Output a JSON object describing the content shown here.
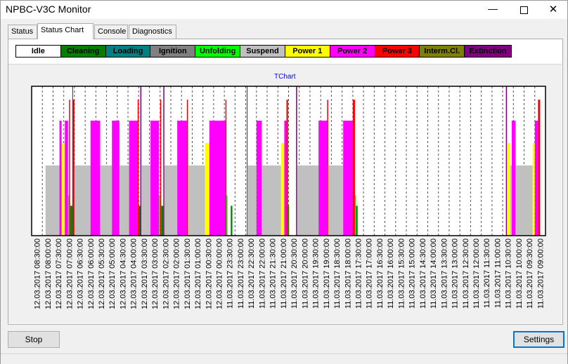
{
  "window": {
    "title": "NPBC-V3C Monitor",
    "minimize": "—",
    "close": "✕"
  },
  "tabs": [
    {
      "label": "Status",
      "active": false
    },
    {
      "label": "Status Chart",
      "active": true
    },
    {
      "label": "Console",
      "active": false
    },
    {
      "label": "Diagnostics",
      "active": false
    }
  ],
  "legend": [
    {
      "label": "Idle",
      "bg": "#ffffff",
      "fg": "#000000"
    },
    {
      "label": "Cleaning",
      "bg": "#008000",
      "fg": "#000000"
    },
    {
      "label": "Loading",
      "bg": "#008080",
      "fg": "#000000"
    },
    {
      "label": "Ignition",
      "bg": "#808080",
      "fg": "#000000"
    },
    {
      "label": "Unfolding",
      "bg": "#00ff00",
      "fg": "#000000"
    },
    {
      "label": "Suspend",
      "bg": "#c0c0c0",
      "fg": "#000000"
    },
    {
      "label": "Power 1",
      "bg": "#ffff00",
      "fg": "#000000"
    },
    {
      "label": "Power 2",
      "bg": "#ff00ff",
      "fg": "#000000"
    },
    {
      "label": "Power 3",
      "bg": "#ff0000",
      "fg": "#000000"
    },
    {
      "label": "Interm.Cl.",
      "bg": "#808000",
      "fg": "#000000"
    },
    {
      "label": "Extinction",
      "bg": "#800080",
      "fg": "#000000"
    }
  ],
  "buttons": {
    "stop": "Stop",
    "settings": "Settings"
  },
  "chart_data": {
    "type": "bar",
    "title": "TChart",
    "ylim": [
      0,
      1
    ],
    "grid": true,
    "colors": {
      "Cleaning": "#008000",
      "Suspend": "#c0c0c0",
      "Power 1": "#ffff00",
      "Power 2": "#ff00ff",
      "Power 3": "#ff0000",
      "Unfolding": "#00ff00",
      "Extinction": "#800080"
    },
    "levels": {
      "Suspend": 0.47,
      "Power 1": 0.62,
      "Power 2": 0.77,
      "Power 3": 0.91,
      "Unfolding": 0.27,
      "Cleaning": 0.2,
      "Extinction": 1.0
    },
    "x": [
      "12.03.2017 08:30:00",
      "12.03.2017 08:00:00",
      "12.03.2017 07:30:00",
      "12.03.2017 07:00:00",
      "12.03.2017 06:30:00",
      "12.03.2017 06:00:00",
      "12.03.2017 05:30:00",
      "12.03.2017 05:00:00",
      "12.03.2017 04:30:00",
      "12.03.2017 04:00:00",
      "12.03.2017 03:30:00",
      "12.03.2017 03:00:00",
      "12.03.2017 02:30:00",
      "12.03.2017 02:00:00",
      "12.03.2017 01:30:00",
      "12.03.2017 01:00:00",
      "12.03.2017 00:30:00",
      "12.03.2017 00:00:00",
      "11.03.2017 23:30:00",
      "11.03.2017 23:00:00",
      "11.03.2017 22:30:00",
      "11.03.2017 22:00:00",
      "11.03.2017 21:30:00",
      "11.03.2017 21:00:00",
      "11.03.2017 20:30:00",
      "11.03.2017 20:00:00",
      "11.03.2017 19:30:00",
      "11.03.2017 19:00:00",
      "11.03.2017 18:30:00",
      "11.03.2017 18:00:00",
      "11.03.2017 17:30:00",
      "11.03.2017 17:00:00",
      "11.03.2017 16:30:00",
      "11.03.2017 16:00:00",
      "11.03.2017 15:30:00",
      "11.03.2017 15:00:00",
      "11.03.2017 14:30:00",
      "11.03.2017 14:00:00",
      "11.03.2017 13:30:00",
      "11.03.2017 13:00:00",
      "11.03.2017 12:30:00",
      "11.03.2017 12:00:00",
      "11.03.2017 11:30:00",
      "11.03.2017 11:00:00",
      "11.03.2017 10:30:00",
      "11.03.2017 10:00:00",
      "11.03.2017 09:30:00",
      "11.03.2017 09:00:00"
    ],
    "segments": [
      {
        "state": "Suspend",
        "start": 1.3,
        "end": 3.1
      },
      {
        "state": "Power 2",
        "start": 2.6,
        "end": 2.8
      },
      {
        "state": "Power 1",
        "start": 2.8,
        "end": 3.1
      },
      {
        "state": "Power 2",
        "start": 3.1,
        "end": 3.4
      },
      {
        "state": "Unfolding",
        "start": 3.4,
        "end": 3.5
      },
      {
        "state": "Power 3",
        "start": 3.5,
        "end": 3.6
      },
      {
        "state": "Cleaning",
        "start": 3.6,
        "end": 3.8
      },
      {
        "state": "Extinction",
        "start": 3.8,
        "end": 3.85
      },
      {
        "state": "Power 3",
        "start": 3.85,
        "end": 4.0
      },
      {
        "state": "Suspend",
        "start": 4.0,
        "end": 5.5
      },
      {
        "state": "Power 2",
        "start": 5.5,
        "end": 6.4
      },
      {
        "state": "Suspend",
        "start": 6.4,
        "end": 7.5
      },
      {
        "state": "Power 2",
        "start": 7.5,
        "end": 8.2
      },
      {
        "state": "Suspend",
        "start": 8.2,
        "end": 9.1
      },
      {
        "state": "Power 2",
        "start": 9.1,
        "end": 9.9
      },
      {
        "state": "Power 3",
        "start": 9.9,
        "end": 10.0
      },
      {
        "state": "Cleaning",
        "start": 10.0,
        "end": 10.15
      },
      {
        "state": "Extinction",
        "start": 10.15,
        "end": 10.25
      },
      {
        "state": "Suspend",
        "start": 10.25,
        "end": 11.1
      },
      {
        "state": "Power 2",
        "start": 11.1,
        "end": 11.9
      },
      {
        "state": "Unfolding",
        "start": 11.9,
        "end": 12.0
      },
      {
        "state": "Power 3",
        "start": 12.0,
        "end": 12.1
      },
      {
        "state": "Cleaning",
        "start": 12.1,
        "end": 12.3
      },
      {
        "state": "Extinction",
        "start": 12.3,
        "end": 12.4
      },
      {
        "state": "Suspend",
        "start": 12.4,
        "end": 13.6
      },
      {
        "state": "Power 2",
        "start": 13.6,
        "end": 14.5
      },
      {
        "state": "Power 3",
        "start": 14.5,
        "end": 14.6
      },
      {
        "state": "Suspend",
        "start": 14.6,
        "end": 16.2
      },
      {
        "state": "Power 1",
        "start": 16.2,
        "end": 16.6
      },
      {
        "state": "Power 2",
        "start": 16.6,
        "end": 18.1
      },
      {
        "state": "Power 3",
        "start": 18.1,
        "end": 18.2
      },
      {
        "state": "Unfolding",
        "start": 18.2,
        "end": 18.3
      },
      {
        "state": "Cleaning",
        "start": 18.6,
        "end": 18.75
      },
      {
        "state": "Extinction",
        "start": 20.1,
        "end": 20.15
      },
      {
        "state": "Suspend",
        "start": 20.15,
        "end": 21.0
      },
      {
        "state": "Power 2",
        "start": 21.0,
        "end": 21.5
      },
      {
        "state": "Suspend",
        "start": 21.5,
        "end": 23.3
      },
      {
        "state": "Power 1",
        "start": 23.3,
        "end": 23.6
      },
      {
        "state": "Power 2",
        "start": 23.6,
        "end": 23.8
      },
      {
        "state": "Power 3",
        "start": 23.8,
        "end": 23.95
      },
      {
        "state": "Cleaning",
        "start": 23.95,
        "end": 24.05
      },
      {
        "state": "Extinction",
        "start": 24.7,
        "end": 24.8
      },
      {
        "state": "Suspend",
        "start": 24.8,
        "end": 26.8
      },
      {
        "state": "Power 2",
        "start": 26.8,
        "end": 27.6
      },
      {
        "state": "Power 3",
        "start": 27.6,
        "end": 27.7
      },
      {
        "state": "Suspend",
        "start": 27.7,
        "end": 29.1
      },
      {
        "state": "Power 2",
        "start": 29.1,
        "end": 30.0
      },
      {
        "state": "Power 3",
        "start": 30.0,
        "end": 30.2
      },
      {
        "state": "Unfolding",
        "start": 30.2,
        "end": 30.3
      },
      {
        "state": "Cleaning",
        "start": 30.3,
        "end": 30.45
      },
      {
        "state": "Extinction",
        "start": 44.3,
        "end": 44.4
      },
      {
        "state": "Power 1",
        "start": 44.4,
        "end": 44.7
      },
      {
        "state": "Suspend",
        "start": 44.7,
        "end": 44.85
      },
      {
        "state": "Power 2",
        "start": 44.85,
        "end": 45.2
      },
      {
        "state": "Suspend",
        "start": 45.2,
        "end": 46.8
      },
      {
        "state": "Power 1",
        "start": 46.8,
        "end": 47.0
      },
      {
        "state": "Power 2",
        "start": 47.0,
        "end": 47.3
      },
      {
        "state": "Power 3",
        "start": 47.3,
        "end": 47.5
      }
    ]
  }
}
